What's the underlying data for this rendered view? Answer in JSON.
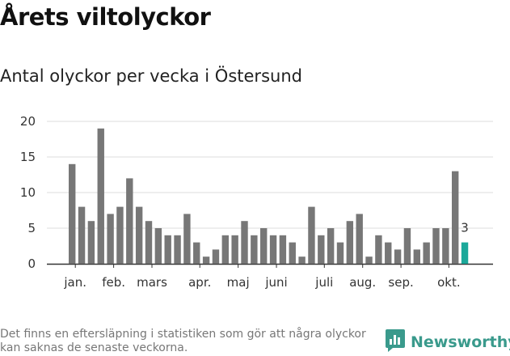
{
  "title": "Årets viltolyckor",
  "subtitle": "Antal olyckor per vecka i Östersund",
  "footnote": "Det finns en eftersläpning i statistiken som gör att några olyckor kan saknas de senaste veckorna.",
  "brand": {
    "name": "Newsworthy",
    "icon": "newsworthy-logo-icon",
    "color": "#3a9a8c"
  },
  "chart_data": {
    "type": "bar",
    "title": "Antal olyckor per vecka i Östersund",
    "xlabel": "",
    "ylabel": "",
    "ylim": [
      0,
      20
    ],
    "yticks": [
      "0",
      "5",
      "10",
      "15",
      "20"
    ],
    "month_labels": [
      {
        "label": "jan.",
        "week_index": 0.5
      },
      {
        "label": "feb.",
        "week_index": 4.5
      },
      {
        "label": "mars",
        "week_index": 8.5
      },
      {
        "label": "apr.",
        "week_index": 13.5
      },
      {
        "label": "maj",
        "week_index": 17.5
      },
      {
        "label": "juni",
        "week_index": 21.5
      },
      {
        "label": "juli",
        "week_index": 26.5
      },
      {
        "label": "aug.",
        "week_index": 30.5
      },
      {
        "label": "sep.",
        "week_index": 34.5
      },
      {
        "label": "okt.",
        "week_index": 39.5
      }
    ],
    "values": [
      14,
      8,
      6,
      19,
      7,
      8,
      12,
      8,
      6,
      5,
      4,
      4,
      7,
      3,
      1,
      2,
      4,
      4,
      6,
      4,
      5,
      4,
      4,
      3,
      1,
      8,
      4,
      5,
      3,
      6,
      7,
      1,
      4,
      3,
      2,
      5,
      2,
      3,
      5,
      5,
      13,
      3
    ],
    "bar_color": "#777777",
    "highlight_color": "#1ba89a",
    "highlight_index": 41,
    "highlight_label": "3",
    "grid": true
  }
}
